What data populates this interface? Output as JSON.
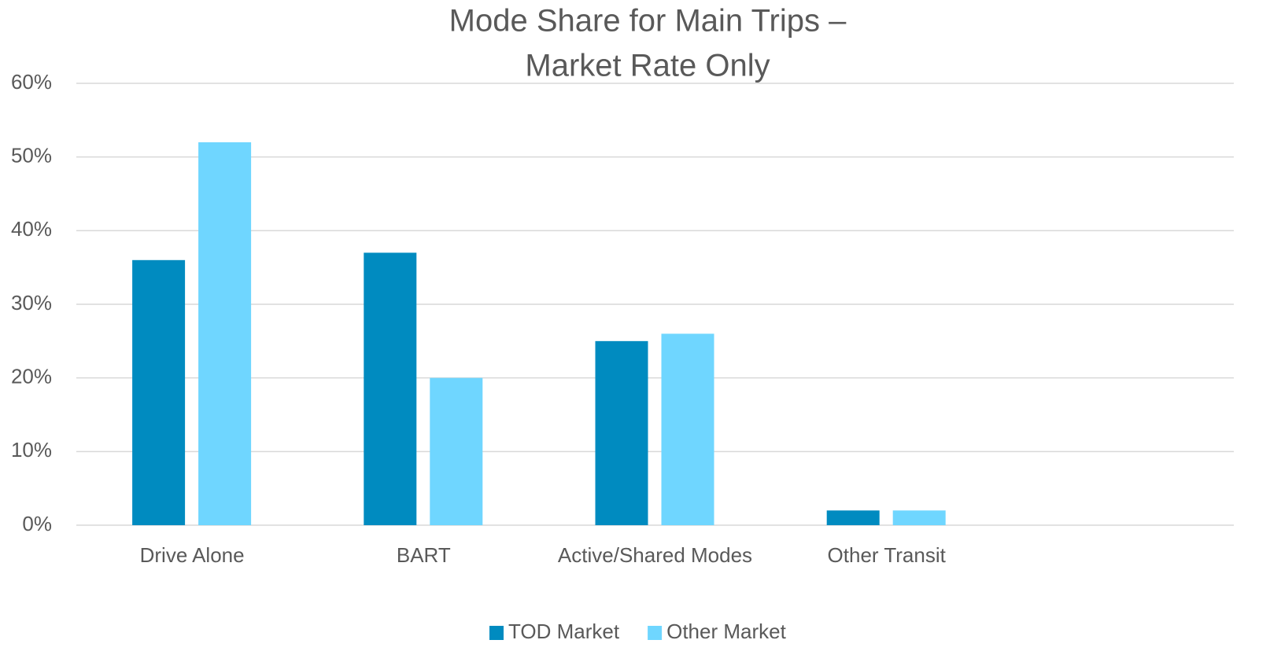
{
  "chart_data": {
    "type": "bar",
    "title": [
      "Mode Share for Main Trips –",
      "Market Rate Only"
    ],
    "categories": [
      "Drive Alone",
      "BART",
      "Active/Shared Modes",
      "Other Transit",
      null
    ],
    "series": [
      {
        "name": "TOD Market",
        "color": "#008bc0",
        "values": [
          36,
          37,
          25,
          2,
          null
        ]
      },
      {
        "name": "Other Market",
        "color": "#6fd6ff",
        "values": [
          52,
          20,
          26,
          2,
          null
        ]
      }
    ],
    "ylim": [
      0,
      60
    ],
    "yticks": [
      {
        "value": 0,
        "label": "0%"
      },
      {
        "value": 10,
        "label": "10%"
      },
      {
        "value": 20,
        "label": "20%"
      },
      {
        "value": 30,
        "label": "30%"
      },
      {
        "value": 40,
        "label": "40%"
      },
      {
        "value": 50,
        "label": "50%"
      },
      {
        "value": 60,
        "label": "60%"
      }
    ],
    "grid": true,
    "legend": "bottom"
  }
}
